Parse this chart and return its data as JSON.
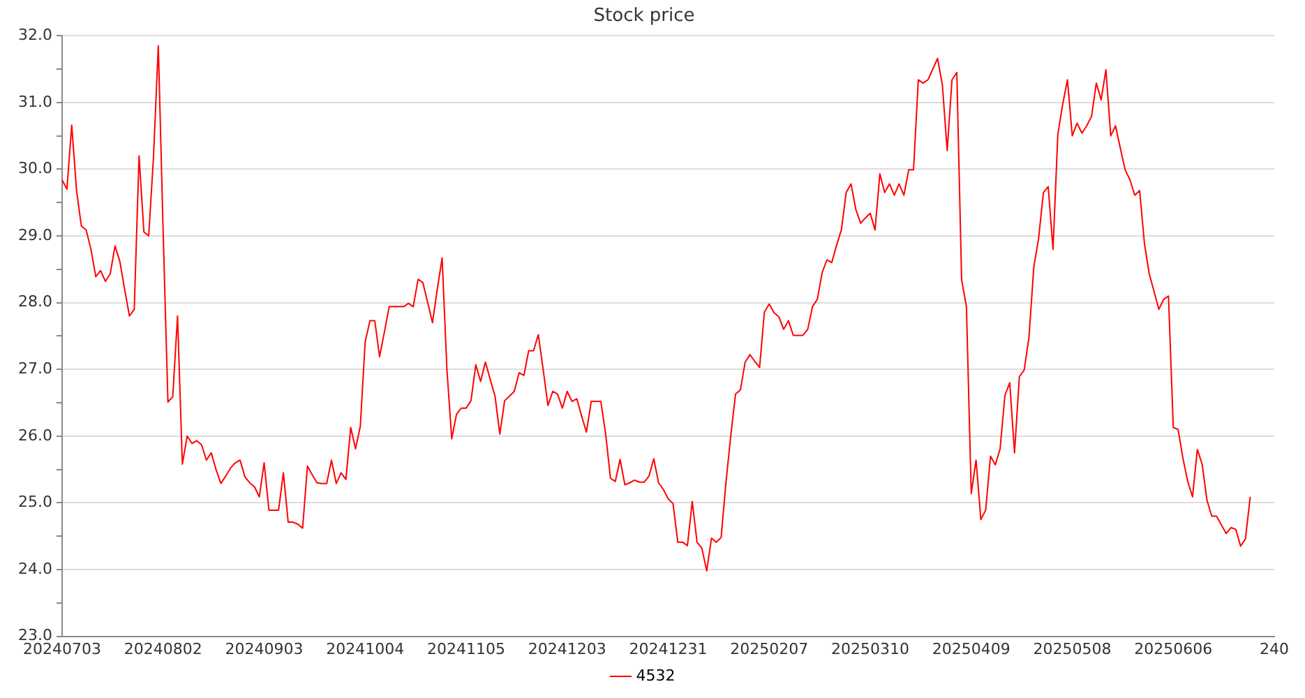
{
  "chart_data": {
    "type": "line",
    "title": "Stock price",
    "categories": [
      "20240703",
      null,
      null,
      null,
      null,
      null,
      null,
      null,
      null,
      null,
      null,
      null,
      null,
      null,
      null,
      null,
      null,
      null,
      null,
      null,
      null,
      "20240802",
      null,
      null,
      null,
      null,
      null,
      null,
      null,
      null,
      null,
      null,
      null,
      null,
      null,
      null,
      null,
      null,
      null,
      null,
      null,
      null,
      "20240903",
      null,
      null,
      null,
      null,
      null,
      null,
      null,
      null,
      null,
      null,
      null,
      null,
      null,
      null,
      null,
      null,
      null,
      null,
      null,
      null,
      "20241004",
      null,
      null,
      null,
      null,
      null,
      null,
      null,
      null,
      null,
      null,
      null,
      null,
      null,
      null,
      null,
      null,
      null,
      null,
      null,
      null,
      "20241105",
      null,
      null,
      null,
      null,
      null,
      null,
      null,
      null,
      null,
      null,
      null,
      null,
      null,
      null,
      null,
      null,
      null,
      null,
      null,
      null,
      "20241203",
      null,
      null,
      null,
      null,
      null,
      null,
      null,
      null,
      null,
      null,
      null,
      null,
      null,
      null,
      null,
      null,
      null,
      null,
      null,
      null,
      "20241231",
      null,
      null,
      null,
      null,
      null,
      null,
      null,
      null,
      null,
      null,
      null,
      null,
      null,
      null,
      null,
      null,
      null,
      null,
      null,
      null,
      "20250207",
      null,
      null,
      null,
      null,
      null,
      null,
      null,
      null,
      null,
      null,
      null,
      null,
      null,
      null,
      null,
      null,
      null,
      null,
      null,
      null,
      "20250310",
      null,
      null,
      null,
      null,
      null,
      null,
      null,
      null,
      null,
      null,
      null,
      null,
      null,
      null,
      null,
      null,
      null,
      null,
      null,
      null,
      "20250409",
      null,
      null,
      null,
      null,
      null,
      null,
      null,
      null,
      null,
      null,
      null,
      null,
      null,
      null,
      null,
      null,
      null,
      null,
      null,
      null,
      "20250508",
      null,
      null,
      null,
      null,
      null,
      null,
      null,
      null,
      null,
      null,
      null,
      null,
      null,
      null,
      null,
      null,
      null,
      null,
      null,
      null,
      "20250606",
      null,
      null,
      null,
      null,
      null,
      null,
      null,
      null,
      null,
      null,
      null,
      null,
      null,
      null,
      null,
      null,
      null,
      null,
      null,
      null,
      "240"
    ],
    "ylim": [
      23,
      32
    ],
    "yticks": [
      {
        "value": 23,
        "label": "23.0"
      },
      {
        "value": 23.5,
        "label": null
      },
      {
        "value": 24,
        "label": "24.0"
      },
      {
        "value": 24.5,
        "label": null
      },
      {
        "value": 25,
        "label": "25.0"
      },
      {
        "value": 25.5,
        "label": null
      },
      {
        "value": 26,
        "label": "26.0"
      },
      {
        "value": 26.5,
        "label": null
      },
      {
        "value": 27,
        "label": "27.0"
      },
      {
        "value": 27.5,
        "label": null
      },
      {
        "value": 28,
        "label": "28.0"
      },
      {
        "value": 28.5,
        "label": null
      },
      {
        "value": 29,
        "label": "29.0"
      },
      {
        "value": 29.5,
        "label": null
      },
      {
        "value": 30,
        "label": "30.0"
      },
      {
        "value": 30.5,
        "label": null
      },
      {
        "value": 31,
        "label": "31.0"
      },
      {
        "value": 31.5,
        "label": null
      },
      {
        "value": 32,
        "label": "32.0"
      }
    ],
    "grid": "y",
    "legend": "bottom",
    "marker": "none",
    "line_style": "solid",
    "series": [
      {
        "name": "4532",
        "color": "#ff0000",
        "values": [
          29.84,
          29.7,
          30.66,
          29.68,
          29.15,
          29.09,
          28.8,
          28.39,
          28.48,
          28.32,
          28.43,
          28.85,
          28.62,
          28.2,
          27.8,
          27.9,
          30.2,
          29.06,
          29.0,
          30.18,
          31.85,
          29.08,
          26.51,
          26.59,
          27.8,
          25.58,
          26.0,
          25.89,
          25.93,
          25.87,
          25.64,
          25.75,
          25.5,
          25.29,
          25.4,
          25.52,
          25.6,
          25.64,
          25.39,
          25.3,
          25.24,
          25.09,
          25.6,
          24.89,
          24.89,
          24.89,
          25.45,
          24.71,
          24.71,
          24.68,
          24.62,
          25.55,
          25.42,
          25.3,
          25.29,
          25.29,
          25.64,
          25.29,
          25.45,
          25.35,
          26.13,
          25.81,
          26.15,
          27.41,
          27.73,
          27.73,
          27.19,
          27.56,
          27.94,
          27.94,
          27.94,
          27.94,
          27.99,
          27.94,
          28.35,
          28.3,
          28.0,
          27.7,
          28.2,
          28.67,
          27.0,
          25.96,
          26.33,
          26.42,
          26.42,
          26.53,
          27.07,
          26.82,
          27.11,
          26.85,
          26.6,
          26.03,
          26.53,
          26.6,
          26.67,
          26.95,
          26.91,
          27.28,
          27.28,
          27.52,
          27.0,
          26.46,
          26.67,
          26.63,
          26.42,
          26.67,
          26.52,
          26.56,
          26.3,
          26.06,
          26.52,
          26.52,
          26.52,
          26.03,
          25.37,
          25.32,
          25.65,
          25.27,
          25.3,
          25.34,
          25.31,
          25.31,
          25.4,
          25.66,
          25.3,
          25.2,
          25.06,
          24.99,
          24.41,
          24.41,
          24.36,
          25.02,
          24.41,
          24.32,
          23.98,
          24.47,
          24.41,
          24.48,
          25.3,
          26.0,
          26.63,
          26.69,
          27.11,
          27.22,
          27.12,
          27.03,
          27.86,
          27.98,
          27.85,
          27.79,
          27.6,
          27.73,
          27.51,
          27.51,
          27.51,
          27.6,
          27.94,
          28.05,
          28.45,
          28.64,
          28.6,
          28.86,
          29.09,
          29.65,
          29.78,
          29.4,
          29.19,
          29.27,
          29.34,
          29.09,
          29.93,
          29.65,
          29.78,
          29.61,
          29.78,
          29.61,
          29.99,
          29.99,
          31.34,
          31.29,
          31.34,
          31.5,
          31.66,
          31.26,
          30.28,
          31.34,
          31.45,
          28.34,
          27.94,
          25.14,
          25.64,
          24.75,
          24.89,
          25.7,
          25.57,
          25.81,
          26.61,
          26.8,
          25.75,
          26.89,
          26.99,
          27.48,
          28.53,
          28.96,
          29.65,
          29.74,
          28.8,
          30.52,
          30.97,
          31.34,
          30.5,
          30.69,
          30.54,
          30.65,
          30.79,
          31.29,
          31.04,
          31.49,
          30.5,
          30.65,
          30.31,
          29.99,
          29.84,
          29.61,
          29.68,
          28.89,
          28.43,
          28.17,
          27.9,
          28.05,
          28.1,
          26.13,
          26.1,
          25.67,
          25.32,
          25.09,
          25.8,
          25.58,
          25.04,
          24.8,
          24.8,
          24.67,
          24.54,
          24.63,
          24.6,
          24.35,
          24.46,
          25.09,
          null,
          null,
          null,
          null,
          null
        ]
      }
    ]
  }
}
